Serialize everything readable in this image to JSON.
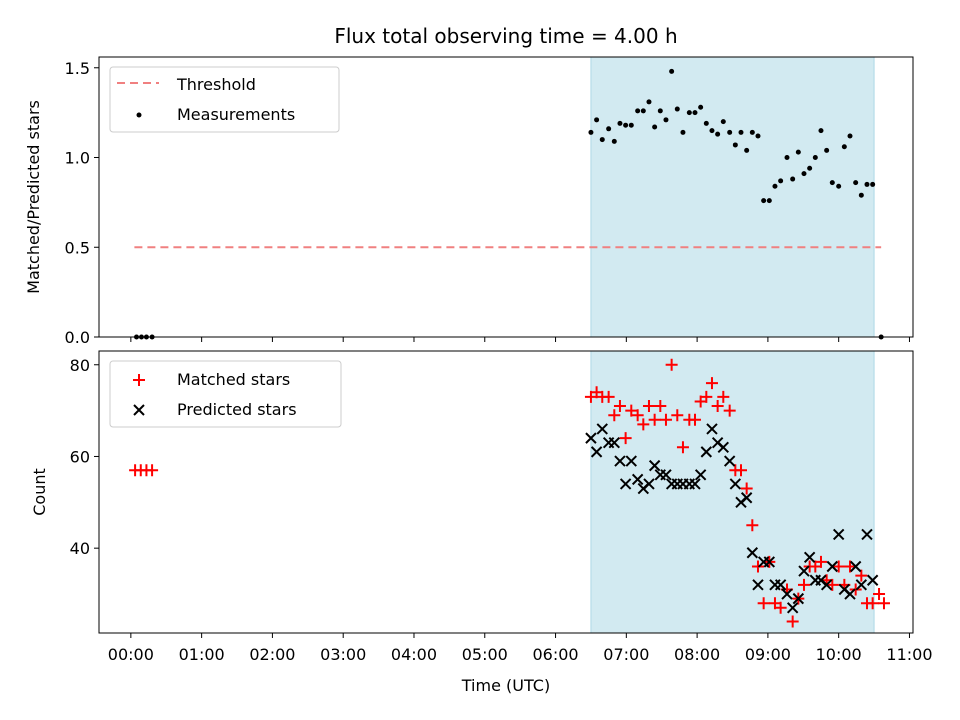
{
  "title": "Flux total observing time = 4.00 h",
  "colors": {
    "threshold": "#f08080",
    "measurement": "#000000",
    "matched": "#ff0000",
    "predicted": "#000000",
    "observing_window": "#add8e6"
  },
  "chart_data": [
    {
      "type": "scatter",
      "panel": "top",
      "ylabel": "Matched/Predicted stars",
      "xlabel": "",
      "ylim": [
        0,
        1.56
      ],
      "yticks": [
        0.0,
        0.5,
        1.0,
        1.5
      ],
      "ytick_labels": [
        "0.0",
        "0.5",
        "1.0",
        "1.5"
      ],
      "xlim_hours": [
        -0.45,
        11.05
      ],
      "observing_window_hours": [
        6.5,
        10.5
      ],
      "legend_placement": "upper-left",
      "threshold": {
        "name": "Threshold",
        "value": 0.5,
        "x_hours": [
          0.05,
          10.6
        ],
        "style": "dashed"
      },
      "series": [
        {
          "name": "Measurements",
          "marker": "dot",
          "x_hours": [
            0.08,
            0.15,
            0.22,
            0.3,
            6.5,
            6.58,
            6.66,
            6.75,
            6.83,
            6.91,
            6.99,
            7.07,
            7.16,
            7.24,
            7.32,
            7.4,
            7.48,
            7.56,
            7.64,
            7.72,
            7.8,
            7.89,
            7.97,
            8.05,
            8.13,
            8.21,
            8.29,
            8.37,
            8.46,
            8.54,
            8.62,
            8.7,
            8.78,
            8.86,
            8.94,
            9.02,
            9.1,
            9.18,
            9.27,
            9.35,
            9.43,
            9.51,
            9.59,
            9.67,
            9.75,
            9.83,
            9.91,
            10.0,
            10.08,
            10.16,
            10.24,
            10.32,
            10.4,
            10.48,
            10.6
          ],
          "y": [
            0,
            0,
            0,
            0,
            1.14,
            1.21,
            1.1,
            1.16,
            1.09,
            1.19,
            1.18,
            1.18,
            1.26,
            1.26,
            1.31,
            1.17,
            1.26,
            1.21,
            1.48,
            1.27,
            1.14,
            1.25,
            1.25,
            1.28,
            1.19,
            1.15,
            1.13,
            1.2,
            1.14,
            1.07,
            1.14,
            1.04,
            1.14,
            1.12,
            0.76,
            0.76,
            0.84,
            0.87,
            1.0,
            0.88,
            1.03,
            0.91,
            0.94,
            1.0,
            1.15,
            1.04,
            0.86,
            0.84,
            1.06,
            1.12,
            0.86,
            0.79,
            0.85,
            0.85,
            0
          ]
        }
      ]
    },
    {
      "type": "scatter",
      "panel": "bottom",
      "ylabel": "Count",
      "xlabel": "Time (UTC)",
      "ylim": [
        21.5,
        83
      ],
      "yticks": [
        40,
        60,
        80
      ],
      "ytick_labels": [
        "40",
        "60",
        "80"
      ],
      "xlim_hours": [
        -0.45,
        11.05
      ],
      "xticks_hours": [
        0,
        1,
        2,
        3,
        4,
        5,
        6,
        7,
        8,
        9,
        10,
        11
      ],
      "xtick_labels": [
        "00:00",
        "01:00",
        "02:00",
        "03:00",
        "04:00",
        "05:00",
        "06:00",
        "07:00",
        "08:00",
        "09:00",
        "10:00",
        "11:00"
      ],
      "observing_window_hours": [
        6.5,
        10.5
      ],
      "legend_placement": "upper-left",
      "series": [
        {
          "name": "Matched stars",
          "marker": "plus",
          "x_hours": [
            0.06,
            0.14,
            0.22,
            0.3,
            6.5,
            6.58,
            6.66,
            6.75,
            6.83,
            6.91,
            6.99,
            7.07,
            7.16,
            7.24,
            7.32,
            7.4,
            7.48,
            7.56,
            7.64,
            7.72,
            7.8,
            7.89,
            7.97,
            8.05,
            8.13,
            8.21,
            8.29,
            8.37,
            8.46,
            8.54,
            8.62,
            8.7,
            8.78,
            8.86,
            8.94,
            9.02,
            9.1,
            9.18,
            9.27,
            9.35,
            9.43,
            9.51,
            9.59,
            9.67,
            9.75,
            9.83,
            9.91,
            10.0,
            10.08,
            10.16,
            10.24,
            10.32,
            10.4,
            10.48,
            10.57,
            10.64
          ],
          "y": [
            57,
            57,
            57,
            57,
            73,
            74,
            73,
            73,
            69,
            71,
            64,
            70,
            69,
            67,
            71,
            68,
            71,
            68,
            80,
            69,
            62,
            68,
            68,
            72,
            73,
            76,
            71,
            73,
            70,
            57,
            57,
            53,
            45,
            36,
            28,
            37,
            28,
            27,
            31,
            24,
            29,
            32,
            36,
            36,
            37,
            33,
            32,
            36,
            32,
            36,
            31,
            34,
            28,
            28,
            30,
            28
          ]
        },
        {
          "name": "Predicted stars",
          "marker": "x",
          "x_hours": [
            6.5,
            6.58,
            6.66,
            6.75,
            6.83,
            6.91,
            6.99,
            7.07,
            7.16,
            7.24,
            7.32,
            7.4,
            7.48,
            7.56,
            7.64,
            7.72,
            7.8,
            7.89,
            7.97,
            8.05,
            8.13,
            8.21,
            8.29,
            8.37,
            8.46,
            8.54,
            8.62,
            8.7,
            8.78,
            8.86,
            8.94,
            9.02,
            9.1,
            9.18,
            9.27,
            9.35,
            9.43,
            9.51,
            9.59,
            9.67,
            9.75,
            9.83,
            9.91,
            10.0,
            10.08,
            10.16,
            10.24,
            10.32,
            10.4,
            10.48
          ],
          "y": [
            64,
            61,
            66,
            63,
            63,
            59,
            54,
            59,
            55,
            53,
            54,
            58,
            56,
            56,
            54,
            54,
            54,
            54,
            54,
            56,
            61,
            66,
            63,
            62,
            59,
            54,
            50,
            51,
            39,
            32,
            37,
            37,
            32,
            32,
            30,
            27,
            29,
            35,
            38,
            33,
            33,
            32,
            36,
            43,
            31,
            30,
            36,
            32,
            43,
            33
          ]
        }
      ]
    }
  ]
}
